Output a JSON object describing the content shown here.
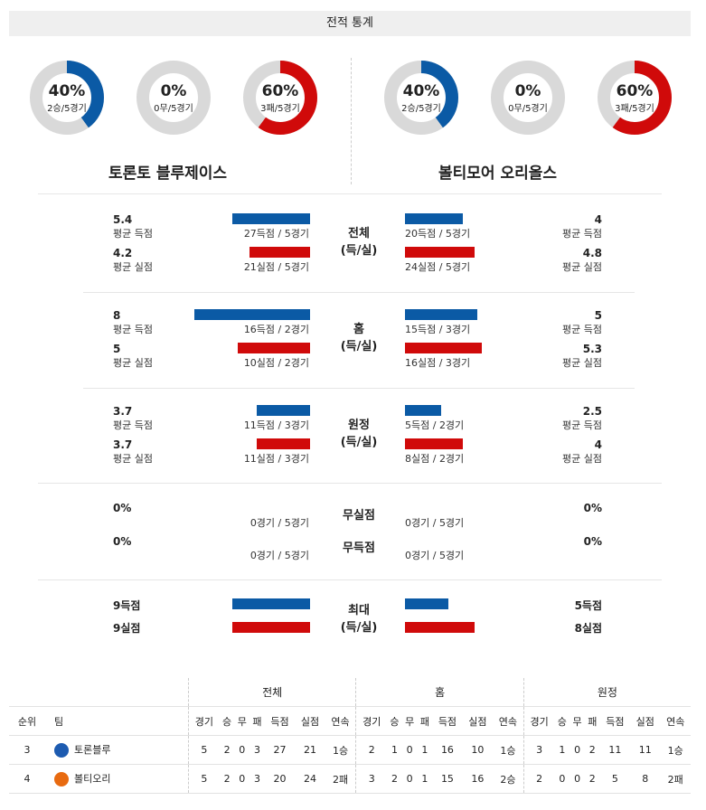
{
  "header": {
    "title": "전적 통계"
  },
  "donuts": [
    {
      "pct": "40%",
      "sub": "2승/5경기",
      "fraction": 0.4,
      "color": "#0b5aa5"
    },
    {
      "pct": "0%",
      "sub": "0무/5경기",
      "fraction": 0.0,
      "color": "#999999"
    },
    {
      "pct": "60%",
      "sub": "3패/5경기",
      "fraction": 0.6,
      "color": "#d00a0a"
    },
    {
      "pct": "40%",
      "sub": "2승/5경기",
      "fraction": 0.4,
      "color": "#0b5aa5"
    },
    {
      "pct": "0%",
      "sub": "0무/5경기",
      "fraction": 0.0,
      "color": "#999999"
    },
    {
      "pct": "60%",
      "sub": "3패/5경기",
      "fraction": 0.6,
      "color": "#d00a0a"
    }
  ],
  "teams": {
    "left": "토론토 블루제이스",
    "right": "볼티모어 오리올스"
  },
  "sections": {
    "total": {
      "label1": "전체",
      "label2": "(득/실)",
      "l_score_val": "5.4",
      "l_score_lbl": "평균 득점",
      "l_score_bar": "27득점 / 5경기",
      "l_score_frac": 0.54,
      "l_lost_val": "4.2",
      "l_lost_lbl": "평균 실점",
      "l_lost_bar": "21실점 / 5경기",
      "l_lost_frac": 0.42,
      "r_score_val": "4",
      "r_score_lbl": "평균 득점",
      "r_score_bar": "20득점 / 5경기",
      "r_score_frac": 0.4,
      "r_lost_val": "4.8",
      "r_lost_lbl": "평균 실점",
      "r_lost_bar": "24실점 / 5경기",
      "r_lost_frac": 0.48
    },
    "home": {
      "label1": "홈",
      "label2": "(득/실)",
      "l_score_val": "8",
      "l_score_lbl": "평균 득점",
      "l_score_bar": "16득점 / 2경기",
      "l_score_frac": 0.8,
      "l_lost_val": "5",
      "l_lost_lbl": "평균 실점",
      "l_lost_bar": "10실점 / 2경기",
      "l_lost_frac": 0.5,
      "r_score_val": "5",
      "r_score_lbl": "평균 득점",
      "r_score_bar": "15득점 / 3경기",
      "r_score_frac": 0.5,
      "r_lost_val": "5.3",
      "r_lost_lbl": "평균 실점",
      "r_lost_bar": "16실점 / 3경기",
      "r_lost_frac": 0.53
    },
    "away": {
      "label1": "원정",
      "label2": "(득/실)",
      "l_score_val": "3.7",
      "l_score_lbl": "평균 득점",
      "l_score_bar": "11득점 / 3경기",
      "l_score_frac": 0.37,
      "l_lost_val": "3.7",
      "l_lost_lbl": "평균 실점",
      "l_lost_bar": "11실점 / 3경기",
      "l_lost_frac": 0.37,
      "r_score_val": "2.5",
      "r_score_lbl": "평균 득점",
      "r_score_bar": "5득점 / 2경기",
      "r_score_frac": 0.25,
      "r_lost_val": "4",
      "r_lost_lbl": "평균 실점",
      "r_lost_bar": "8실점 / 2경기",
      "r_lost_frac": 0.4
    }
  },
  "shutout": {
    "label_a": "무실점",
    "label_b": "무득점",
    "l_a_val": "0%",
    "l_a_bar": "0경기 / 5경기",
    "l_b_val": "0%",
    "l_b_bar": "0경기 / 5경기",
    "r_a_val": "0%",
    "r_a_bar": "0경기 / 5경기",
    "r_b_val": "0%",
    "r_b_bar": "0경기 / 5경기"
  },
  "max": {
    "label1": "최대",
    "label2": "(득/실)",
    "l_score": "9득점",
    "l_score_frac": 0.9,
    "l_lost": "9실점",
    "l_lost_frac": 0.9,
    "r_score": "5득점",
    "r_score_frac": 0.5,
    "r_lost": "8실점",
    "r_lost_frac": 0.8
  },
  "standings": {
    "group_total": "전체",
    "group_home": "홈",
    "group_away": "원정",
    "col_rank": "순위",
    "col_team": "팀",
    "cols": [
      "경기",
      "승",
      "무",
      "패",
      "득점",
      "실점",
      "연속"
    ],
    "rows": [
      {
        "rank": "3",
        "team": "토론블루",
        "logo_color": "#1d5bb0",
        "total": [
          "5",
          "2",
          "0",
          "3",
          "27",
          "21",
          "1승"
        ],
        "home": [
          "2",
          "1",
          "0",
          "1",
          "16",
          "10",
          "1승"
        ],
        "away": [
          "3",
          "1",
          "0",
          "2",
          "11",
          "11",
          "1승"
        ]
      },
      {
        "rank": "4",
        "team": "볼티오리",
        "logo_color": "#e86a10",
        "total": [
          "5",
          "2",
          "0",
          "3",
          "20",
          "24",
          "2패"
        ],
        "home": [
          "3",
          "2",
          "0",
          "1",
          "15",
          "16",
          "2승"
        ],
        "away": [
          "2",
          "0",
          "0",
          "2",
          "5",
          "8",
          "2패"
        ]
      }
    ]
  }
}
